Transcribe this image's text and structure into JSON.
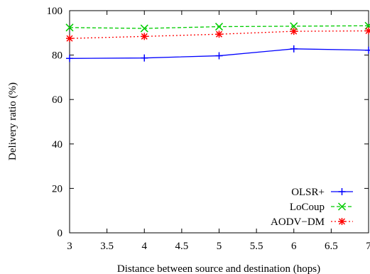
{
  "chart_data": {
    "type": "line",
    "title": "",
    "xlabel": "Distance between source and destination (hops)",
    "ylabel": "Delivery ratio (%)",
    "xlim": [
      3,
      7
    ],
    "ylim": [
      0,
      100
    ],
    "xticks": [
      "3",
      "3.5",
      "4",
      "4.5",
      "5",
      "5.5",
      "6",
      "6.5",
      "7"
    ],
    "yticks": [
      "0",
      "20",
      "40",
      "60",
      "80",
      "100"
    ],
    "grid": false,
    "legend_position": "bottom-right",
    "x": [
      3,
      4,
      5,
      6,
      7
    ],
    "series": [
      {
        "name": "OLSR+",
        "values": [
          78.5,
          78.7,
          79.7,
          82.8,
          82.2
        ],
        "color": "#0000ff",
        "marker": "plus",
        "dash": "solid"
      },
      {
        "name": "LoCoup",
        "values": [
          92.4,
          92.0,
          92.8,
          93.0,
          93.2
        ],
        "color": "#00cc00",
        "marker": "x",
        "dash": "dashed"
      },
      {
        "name": "AODV−DM",
        "values": [
          87.5,
          88.4,
          89.4,
          90.7,
          90.9
        ],
        "color": "#ff0000",
        "marker": "star",
        "dash": "dotted"
      }
    ]
  }
}
